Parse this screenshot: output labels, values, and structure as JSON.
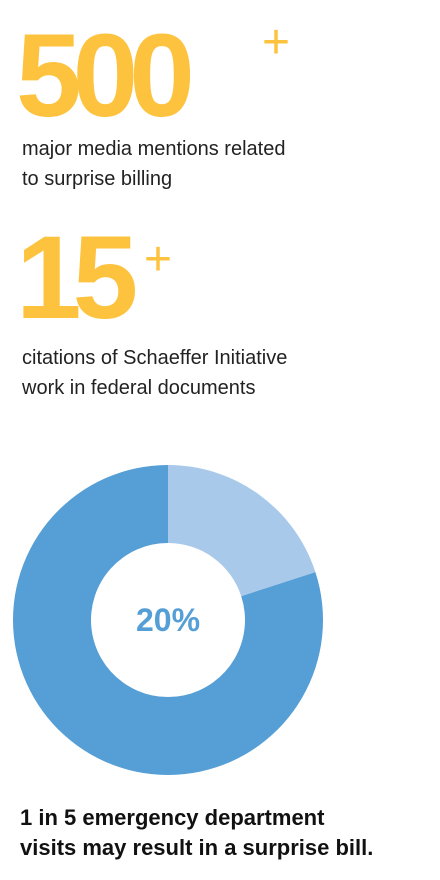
{
  "stats": [
    {
      "number": "500",
      "suffix": "+",
      "lines": [
        "major media mentions related",
        "to surprise billing"
      ]
    },
    {
      "number": "15",
      "suffix": "+",
      "lines": [
        "citations of Schaeffer Initiative",
        "work in federal documents"
      ]
    }
  ],
  "chart_data": {
    "type": "donut",
    "values": [
      20,
      80
    ],
    "value_labels": [
      "20%",
      null
    ],
    "colors": [
      "#a9c9eb",
      "#559fd6"
    ],
    "caption": [
      "1 in 5 emergency department",
      "visits may result in a surprise bill."
    ]
  }
}
